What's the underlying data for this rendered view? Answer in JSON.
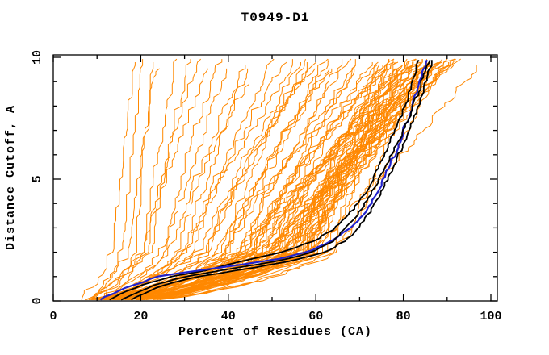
{
  "window": {
    "title": "T0949-D1"
  },
  "chart_data": {
    "type": "line",
    "title": "T0949-D1",
    "xlabel": "Percent of Residues (CA)",
    "ylabel": "Distance Cutoff, A",
    "xlim": [
      0,
      101.5
    ],
    "ylim": [
      0,
      10.1
    ],
    "grid": false,
    "legend": "none",
    "x_major_ticks": [
      0,
      20,
      40,
      60,
      80,
      100
    ],
    "x_minor_ticks": [
      10,
      30,
      50,
      70,
      90
    ],
    "y_major_ticks": [
      0,
      5,
      10
    ],
    "y_minor_ticks": [
      1,
      2,
      3,
      4,
      6,
      7,
      8,
      9
    ],
    "colors": {
      "background": "#ffffff",
      "axis": "#000000",
      "ensemble": "#ff8800",
      "highlight_black": "#000000",
      "highlight_blue": "#2222cc"
    },
    "y_samples": [
      0,
      0.25,
      0.5,
      0.75,
      1,
      1.25,
      1.5,
      1.75,
      2,
      2.5,
      3,
      3.5,
      4,
      4.5,
      5,
      5.5,
      6,
      6.5,
      7,
      7.5,
      8,
      8.5,
      9,
      9.5,
      10
    ],
    "highlighted_series": [
      {
        "name": "black-model-1",
        "color": "#000000",
        "width": 1.8,
        "x": [
          12,
          15,
          18,
          22,
          27,
          35,
          40,
          46,
          52,
          60,
          64.5,
          67.5,
          69.5,
          71.5,
          73,
          74.3,
          75.5,
          76.8,
          78,
          79.2,
          80.3,
          81.2,
          82,
          82.8,
          83.5
        ]
      },
      {
        "name": "blue-model",
        "color": "#2222cc",
        "width": 2.2,
        "x": [
          10,
          13,
          16,
          20,
          24,
          33,
          43,
          52,
          58,
          64,
          68,
          70.5,
          72.5,
          74,
          75.5,
          76.5,
          78,
          79,
          80,
          81,
          82,
          82.8,
          83.6,
          84.5,
          86
        ]
      },
      {
        "name": "black-model-2",
        "color": "#000000",
        "width": 1.8,
        "x": [
          15,
          18,
          21,
          25,
          30,
          38,
          47,
          54,
          59,
          64.2,
          67,
          69.3,
          71.2,
          72.9,
          74.4,
          75.8,
          77.2,
          78.6,
          80,
          81.2,
          82.3,
          83.3,
          84.2,
          85.1,
          86
        ]
      },
      {
        "name": "black-model-3",
        "color": "#000000",
        "width": 1.8,
        "x": [
          17,
          20,
          23,
          27,
          33,
          42,
          50,
          57,
          62,
          67,
          69.8,
          71.8,
          73.5,
          75,
          76.3,
          77.6,
          78.9,
          80.1,
          81.3,
          82.4,
          83.4,
          84.3,
          85.2,
          86,
          86.7
        ]
      }
    ],
    "ensemble_series": {
      "name": "server-model-curves",
      "color": "#ff8800",
      "width": 1,
      "count": 88,
      "param_meaning": "percent of residues at distance cutoff y=0, y=2, y=10",
      "curve_params": [
        [
          5,
          13,
          18
        ],
        [
          7,
          15,
          20
        ],
        [
          6,
          17,
          24
        ],
        [
          8,
          20,
          28
        ],
        [
          5.5,
          22,
          31
        ],
        [
          9,
          18,
          22
        ],
        [
          6,
          20,
          36
        ],
        [
          7,
          24,
          40
        ],
        [
          5,
          26,
          44
        ],
        [
          8,
          28,
          47
        ],
        [
          6.5,
          30,
          50
        ],
        [
          9,
          25,
          38
        ],
        [
          7.5,
          32,
          53
        ],
        [
          5.5,
          21,
          33
        ],
        [
          8.5,
          29,
          45
        ],
        [
          5,
          30,
          56
        ],
        [
          6,
          34,
          58
        ],
        [
          7,
          36,
          60
        ],
        [
          8,
          38,
          62
        ],
        [
          5.5,
          40,
          64
        ],
        [
          6.5,
          33,
          57
        ],
        [
          7.5,
          42,
          66
        ],
        [
          9,
          35,
          61
        ],
        [
          10,
          44,
          68
        ],
        [
          6,
          37,
          63
        ],
        [
          8,
          46,
          70
        ],
        [
          11,
          40,
          65
        ],
        [
          5,
          43,
          72
        ],
        [
          12,
          39,
          59
        ],
        [
          7,
          47,
          73
        ],
        [
          9.5,
          45,
          69
        ],
        [
          5,
          40,
          76
        ],
        [
          6,
          45,
          78
        ],
        [
          7,
          50,
          80
        ],
        [
          8,
          55,
          82
        ],
        [
          9,
          48,
          84
        ],
        [
          10,
          52,
          86
        ],
        [
          11,
          56,
          88
        ],
        [
          12,
          50,
          90
        ],
        [
          5.5,
          44,
          77
        ],
        [
          6.5,
          49,
          79
        ],
        [
          7.5,
          53,
          81
        ],
        [
          8.5,
          57,
          83
        ],
        [
          9.5,
          51,
          85
        ],
        [
          10.5,
          55,
          87
        ],
        [
          11.5,
          59,
          89
        ],
        [
          12.5,
          53,
          91
        ],
        [
          4.5,
          46,
          78.5
        ],
        [
          5.8,
          51,
          80.5
        ],
        [
          6.8,
          56,
          82.5
        ],
        [
          7.8,
          48,
          84.5
        ],
        [
          8.8,
          52,
          86.5
        ],
        [
          9.8,
          57,
          88.5
        ],
        [
          10.8,
          50,
          75.5
        ],
        [
          11.8,
          54,
          77.5
        ],
        [
          13,
          58,
          79.5
        ],
        [
          14,
          49,
          81.5
        ],
        [
          15,
          53,
          83.5
        ],
        [
          16,
          57,
          85.5
        ],
        [
          5.2,
          42,
          87.5
        ],
        [
          6.2,
          47,
          89.5
        ],
        [
          7.2,
          52,
          91.5
        ],
        [
          8.2,
          56,
          76.8
        ],
        [
          9.2,
          60,
          78.8
        ],
        [
          10.2,
          43,
          80.8
        ],
        [
          11.2,
          48,
          82.8
        ],
        [
          12.2,
          53,
          84.8
        ],
        [
          13.2,
          58,
          86.8
        ],
        [
          14.2,
          62,
          88.8
        ],
        [
          4.8,
          45,
          90.8
        ],
        [
          5.9,
          50,
          92.5
        ],
        [
          7.1,
          55,
          75.2
        ],
        [
          8.1,
          59,
          77.2
        ],
        [
          9.1,
          63,
          79.2
        ],
        [
          10.1,
          46,
          81.2
        ],
        [
          11.1,
          51,
          83.2
        ],
        [
          12.1,
          55,
          85.2
        ],
        [
          13.1,
          60,
          87.2
        ],
        [
          14.5,
          64,
          89.2
        ],
        [
          15.5,
          47,
          91.2
        ],
        [
          6.4,
          52,
          93.5
        ],
        [
          7.6,
          57,
          76.2
        ],
        [
          8.6,
          61,
          80.2
        ],
        [
          9.6,
          65,
          84.2
        ],
        [
          10.6,
          49,
          88.2
        ],
        [
          12.8,
          54,
          92.2
        ],
        [
          4.6,
          59,
          86.2
        ],
        [
          9,
          58,
          98.5
        ]
      ]
    },
    "jitter": {
      "seed": 12345,
      "amplitude": 1.1
    }
  }
}
